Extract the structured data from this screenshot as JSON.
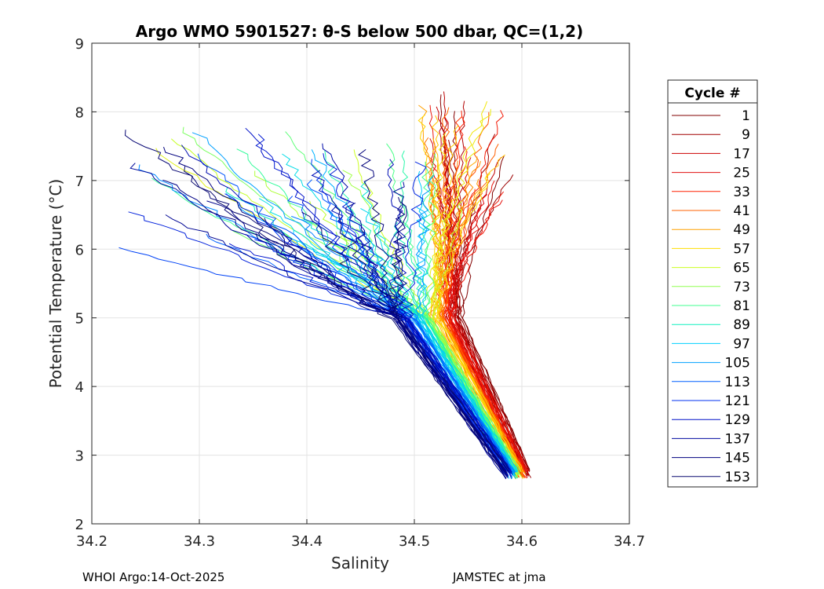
{
  "chart_data": {
    "type": "line",
    "title": "Argo WMO 5901527: θ-S below 500 dbar,  QC=(1,2)",
    "xlabel": "Salinity",
    "ylabel": "Potential Temperature (°C)",
    "xlim": [
      34.2,
      34.7
    ],
    "ylim": [
      2,
      9
    ],
    "xticks": [
      "34.2",
      "34.3",
      "34.4",
      "34.5",
      "34.6",
      "34.7"
    ],
    "yticks": [
      "2",
      "3",
      "4",
      "5",
      "6",
      "7",
      "8",
      "9"
    ],
    "grid": true,
    "legend_position": "outside-right",
    "legend_title": "Cycle #",
    "legend_entries": [
      {
        "label": "1",
        "color": "#800000"
      },
      {
        "label": "9",
        "color": "#a00000"
      },
      {
        "label": "17",
        "color": "#cc0000"
      },
      {
        "label": "25",
        "color": "#e01010"
      },
      {
        "label": "33",
        "color": "#ff2000"
      },
      {
        "label": "41",
        "color": "#ff6000"
      },
      {
        "label": "49",
        "color": "#ffa000"
      },
      {
        "label": "57",
        "color": "#ffdd00"
      },
      {
        "label": "65",
        "color": "#ccff20"
      },
      {
        "label": "73",
        "color": "#90ff50"
      },
      {
        "label": "81",
        "color": "#40ff90"
      },
      {
        "label": "89",
        "color": "#10f0c0"
      },
      {
        "label": "97",
        "color": "#00d0ff"
      },
      {
        "label": "105",
        "color": "#00a0ff"
      },
      {
        "label": "113",
        "color": "#0060ff"
      },
      {
        "label": "121",
        "color": "#0030f0"
      },
      {
        "label": "129",
        "color": "#0010c8"
      },
      {
        "label": "137",
        "color": "#000aa0"
      },
      {
        "label": "145",
        "color": "#000080"
      },
      {
        "label": "153",
        "color": "#0a0a70"
      }
    ],
    "series_summary": {
      "cycle_range": [
        1,
        153
      ],
      "deep_end_salinity_range": [
        34.585,
        34.605
      ],
      "deep_end_theta_range": [
        2.65,
        2.8
      ],
      "early_cycles_upper_end": {
        "salinity": [
          34.52,
          34.6
        ],
        "theta": [
          6.3,
          8.35
        ]
      },
      "late_cycles_upper_end": {
        "salinity": [
          34.2,
          34.5
        ],
        "theta": [
          6.0,
          7.8
        ]
      }
    }
  },
  "footer": {
    "left": "WHOI Argo:14-Oct-2025",
    "right": "JAMSTEC at jma"
  }
}
